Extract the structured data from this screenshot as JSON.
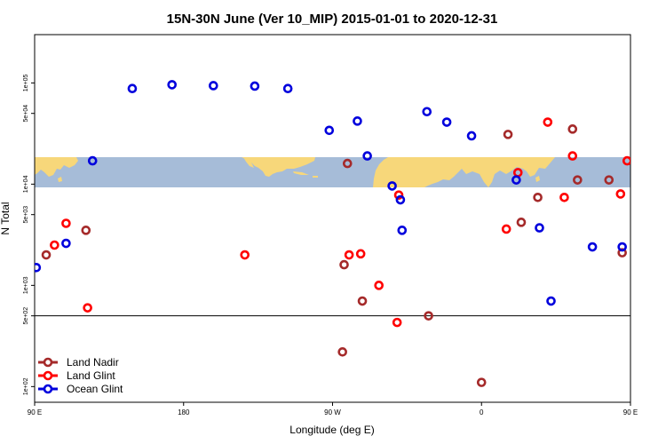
{
  "chart_data": {
    "type": "scatter",
    "title": "15N-30N June (Ver 10_MIP)   2015-01-01 to 2020-12-31",
    "xlabel": "Longitude (deg E)",
    "ylabel": "N Total",
    "y_scale": "log",
    "xlim": [
      90,
      450
    ],
    "ylim": [
      70,
      300000
    ],
    "grid": false,
    "legend_position": "bottom-left",
    "reference_line_y": 500,
    "map_strip": {
      "lat_range": "15N-30N",
      "colors": {
        "ocean": "#a6bcd8",
        "land": "#f7d77a"
      }
    },
    "x_ticks": [
      {
        "value": 90,
        "label": "90 E"
      },
      {
        "value": 180,
        "label": "180"
      },
      {
        "value": 270,
        "label": "90 W"
      },
      {
        "value": 360,
        "label": "0"
      },
      {
        "value": 450,
        "label": "90 E"
      },
      {
        "value": 540,
        "label": "180"
      }
    ],
    "y_ticks": [
      {
        "value": 100,
        "label": "1e+02"
      },
      {
        "value": 500,
        "label": "5e+02"
      },
      {
        "value": 1000,
        "label": "1e+03"
      },
      {
        "value": 5000,
        "label": "5e+03"
      },
      {
        "value": 10000,
        "label": "1e+04"
      },
      {
        "value": 50000,
        "label": "5e+04"
      },
      {
        "value": 100000,
        "label": "1e+05"
      }
    ],
    "series": [
      {
        "name": "Land Nadir",
        "color": "#a52a2a",
        "x": [
          97,
          121,
          276,
          279,
          277,
          288,
          328,
          360,
          376,
          384,
          394,
          415,
          418,
          437,
          445
        ],
        "y": [
          2000,
          3500,
          220,
          16000,
          1600,
          700,
          500,
          110,
          31000,
          4200,
          7400,
          35000,
          11000,
          11000,
          2100
        ]
      },
      {
        "name": "Land Glint",
        "color": "#ff0000",
        "x": [
          102,
          109,
          122,
          217,
          280,
          287,
          298,
          309,
          310,
          375,
          382,
          400,
          410,
          415,
          444,
          448,
          458
        ],
        "y": [
          2500,
          4100,
          600,
          2000,
          2000,
          2050,
          1000,
          430,
          7800,
          3600,
          13000,
          41000,
          7400,
          19000,
          8000,
          17000,
          8000
        ]
      },
      {
        "name": "Ocean Glint",
        "color": "#0000dd",
        "x": [
          91,
          109,
          125,
          149,
          173,
          198,
          223,
          243,
          268,
          285,
          291,
          306,
          311,
          312,
          327,
          339,
          354,
          381,
          395,
          402,
          427,
          445
        ],
        "y": [
          1500,
          2600,
          17000,
          88000,
          96000,
          94000,
          93000,
          88000,
          34000,
          42000,
          19000,
          9600,
          7000,
          3500,
          52000,
          41000,
          30000,
          11000,
          3700,
          700,
          2400,
          2400
        ]
      }
    ]
  }
}
